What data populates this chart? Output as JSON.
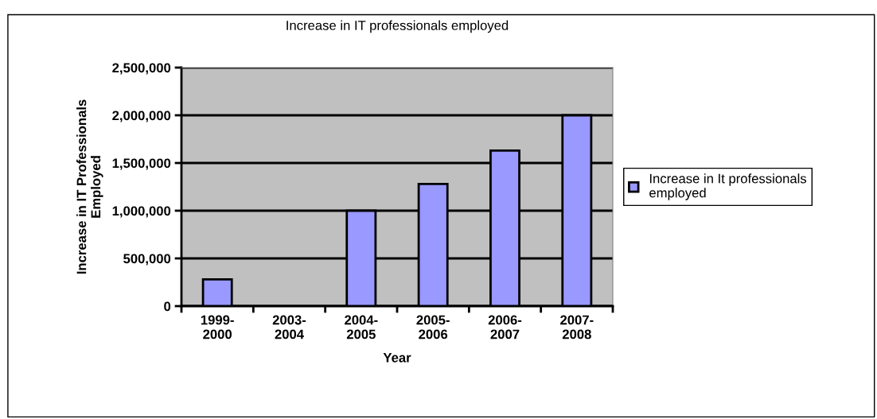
{
  "chart_data": {
    "type": "bar",
    "title": "Increase in IT professionals employed",
    "xlabel": "Year",
    "ylabel": "Increase in IT Professionals\nEmployed",
    "categories": [
      "1999-\n2000",
      "2003-\n2004",
      "2004-\n2005",
      "2005-\n2006",
      "2006-\n2007",
      "2007-\n2008"
    ],
    "series": [
      {
        "name": "Increase in It professionals\nemployed",
        "color": "#9999ff",
        "values": [
          280000,
          null,
          1000000,
          1280000,
          1630000,
          2000000
        ]
      }
    ],
    "ylim": [
      0,
      2500000
    ],
    "yticks": [
      {
        "value": 0,
        "label": "0"
      },
      {
        "value": 500000,
        "label": "500,000"
      },
      {
        "value": 1000000,
        "label": "1,000,000"
      },
      {
        "value": 1500000,
        "label": "1,500,000"
      },
      {
        "value": 2000000,
        "label": "2,000,000"
      },
      {
        "value": 2500000,
        "label": "2,500,000"
      }
    ],
    "grid": "y",
    "legend": "right"
  }
}
